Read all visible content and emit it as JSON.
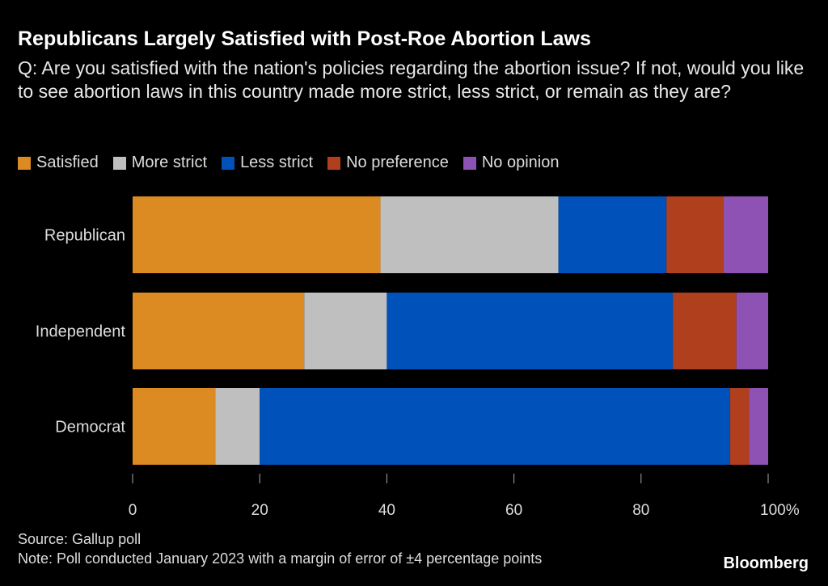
{
  "title": "Republicans Largely Satisfied with Post-Roe Abortion Laws",
  "subtitle": "Q: Are you satisfied with the nation's policies regarding the abortion issue? If not, would you like to see abortion laws in this country made more strict, less strict, or remain as they are?",
  "source": "Source: Gallup poll",
  "note": "Note: Poll conducted January 2023 with a margin of error of ±4 percentage points",
  "brand": "Bloomberg",
  "chart_data": {
    "type": "bar",
    "orientation": "horizontal",
    "stacked": true,
    "categories": [
      "Republican",
      "Independent",
      "Democrat"
    ],
    "series": [
      {
        "name": "Satisfied",
        "color": "#dc8a22",
        "values": [
          39,
          27,
          13
        ]
      },
      {
        "name": "More strict",
        "color": "#bfbfbf",
        "values": [
          28,
          13,
          7
        ]
      },
      {
        "name": "Less strict",
        "color": "#0051b9",
        "values": [
          17,
          45,
          74
        ]
      },
      {
        "name": "No preference",
        "color": "#b03f1e",
        "values": [
          9,
          10,
          3
        ]
      },
      {
        "name": "No opinion",
        "color": "#8e52b5",
        "values": [
          7,
          5,
          3
        ]
      }
    ],
    "xlim": [
      0,
      100
    ],
    "xticks": [
      "0",
      "20",
      "40",
      "60",
      "80",
      "100%"
    ],
    "legend_position": "top-left"
  }
}
